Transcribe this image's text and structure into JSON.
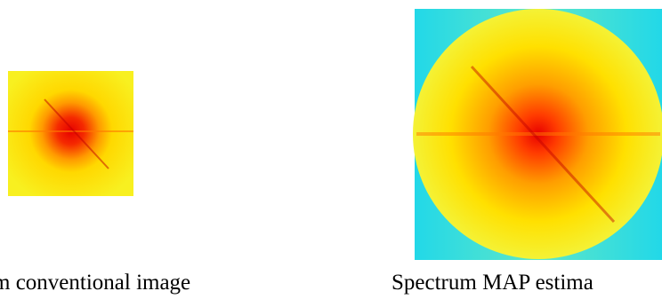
{
  "figure": {
    "captions": [
      "m conventional image",
      "Spectrum MAP estima"
    ]
  }
}
